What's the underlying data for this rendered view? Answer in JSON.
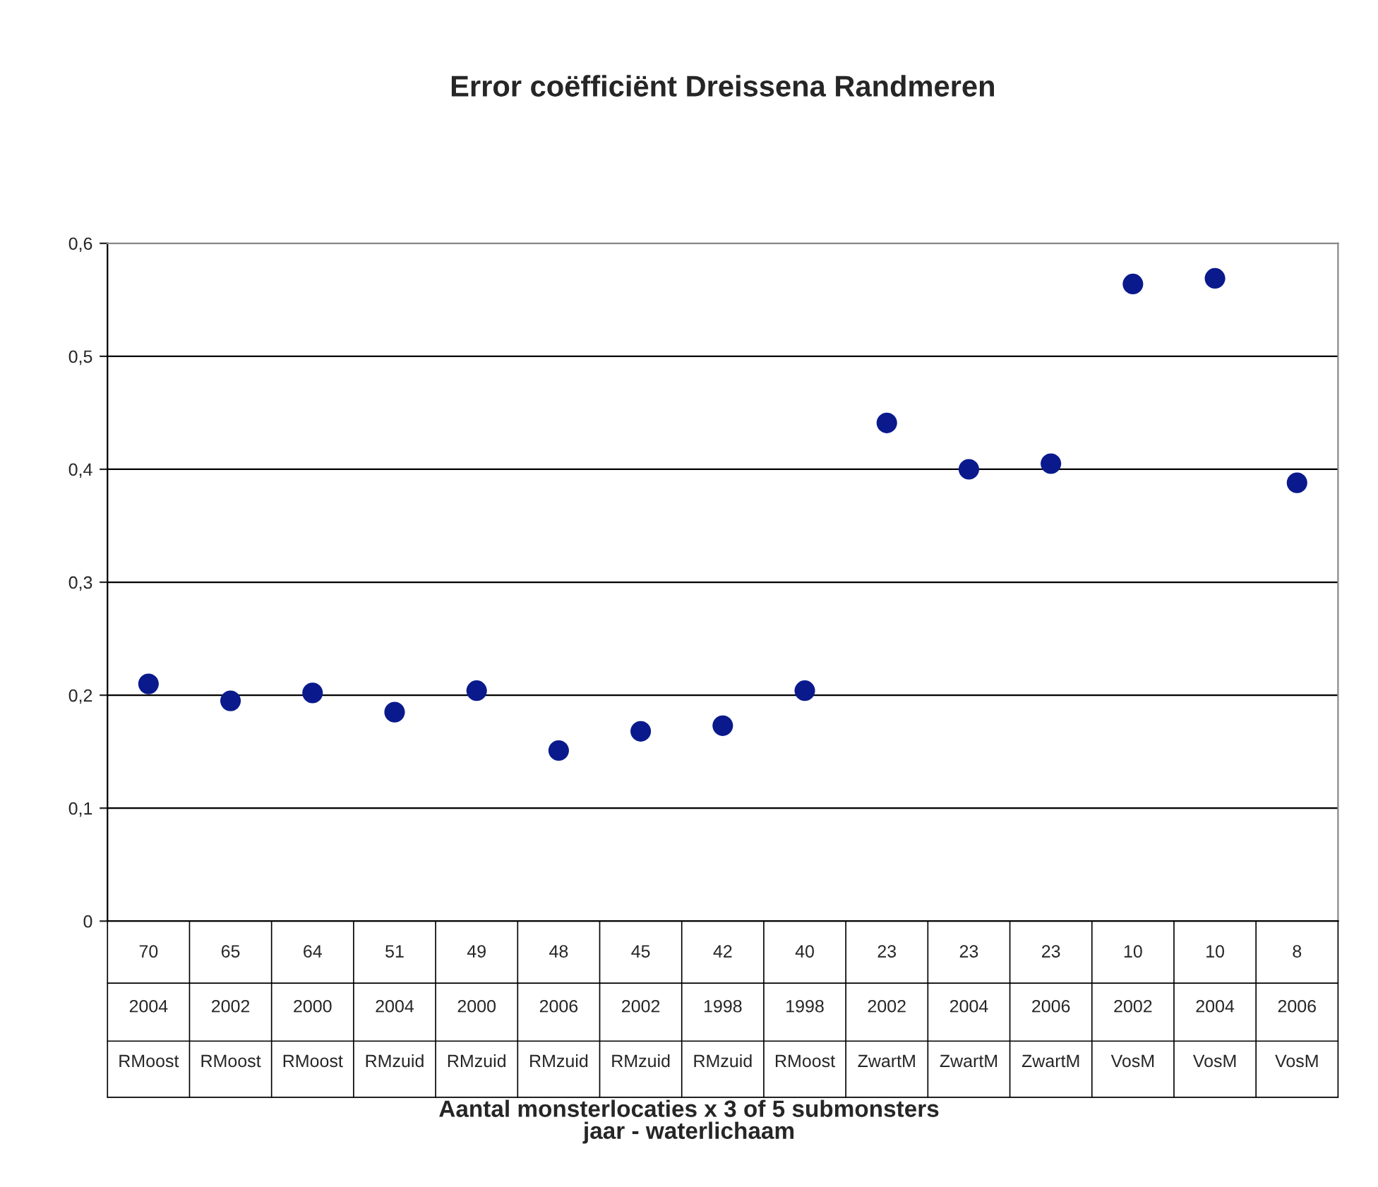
{
  "chart_data": {
    "type": "scatter",
    "title": "Error coëfficiënt Dreissena Randmeren",
    "annotations": [
      "Aantal monsterlocaties x 3 of 5 submonsters\njaar - waterlichaam"
    ],
    "categories": [
      "70\n2004\nRMoost",
      "65\n2002\nRMoost",
      "64\n2000\nRMoost",
      "51\n2004\nRMzuid",
      "49\n2000\nRMzuid",
      "48\n2006\nRMzuid",
      "45\n2002\nRMzuid",
      "42\n1998\nRMzuid",
      "40\n1998\nRMoost",
      "23\n2002\nZwartM",
      "23\n2004\nZwartM",
      "23\n2006\nZwartM",
      "10\n2002\nVosM",
      "10\n2004\nVosM",
      "8\n2006\nVosM"
    ],
    "series": [
      {
        "color": "#0a1a8c",
        "values": [
          0.21,
          0.195,
          0.202,
          0.185,
          0.204,
          0.151,
          0.168,
          0.173,
          0.204,
          0.441,
          0.4,
          0.405,
          0.564,
          0.569,
          0.388
        ]
      }
    ],
    "ylim": [
      0,
      0.6
    ],
    "yticks": [
      {
        "value": 0,
        "label": "0"
      },
      {
        "value": 0.1,
        "label": "0,1"
      },
      {
        "value": 0.2,
        "label": "0,2"
      },
      {
        "value": 0.3,
        "label": "0,3"
      },
      {
        "value": 0.4,
        "label": "0,4"
      },
      {
        "value": 0.5,
        "label": "0,5"
      },
      {
        "value": 0.6,
        "label": "0,6"
      }
    ],
    "grid": "y",
    "marker": "circle"
  }
}
